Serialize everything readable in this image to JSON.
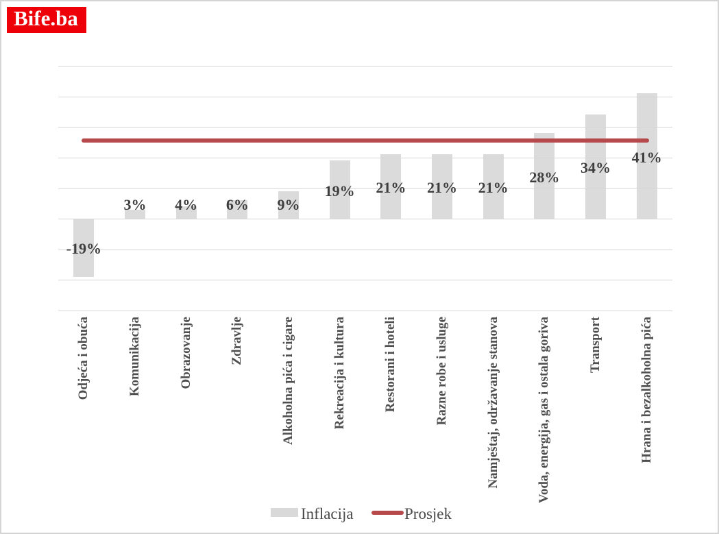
{
  "logo": {
    "text": "Bife.ba",
    "bg_color": "#ee0008",
    "text_color": "#ffffff"
  },
  "legend": {
    "items": [
      {
        "label": "Inflacija",
        "swatch": "bar",
        "color": "#d9d9d9"
      },
      {
        "label": "Prosjek",
        "swatch": "line",
        "color": "#b5494b"
      }
    ]
  },
  "chart_data": {
    "type": "bar",
    "title": "",
    "xlabel": "",
    "ylabel": "",
    "categories": [
      "Odjeća i obuća",
      "Komunikacija",
      "Obrazovanje",
      "Zdravlje",
      "Alkoholna pića i cigare",
      "Rekreacija i kultura",
      "Restorani i hoteli",
      "Razne robe i usluge",
      "Namještaj, održavanje stanova",
      "Voda, energija, gas i ostala goriva",
      "Transport",
      "Hrana i bezalkoholna pića"
    ],
    "series": [
      {
        "name": "Inflacija",
        "type": "bar",
        "color": "#dbdbdb",
        "values": [
          -19,
          3,
          4,
          6,
          9,
          19,
          21,
          21,
          21,
          28,
          34,
          41
        ],
        "data_labels": [
          "-19%",
          "3%",
          "4%",
          "6%",
          "9%",
          "19%",
          "21%",
          "21%",
          "21%",
          "28%",
          "34%",
          "41%"
        ]
      },
      {
        "name": "Prosjek",
        "type": "line",
        "color": "#b5494b",
        "value": 25.6
      }
    ],
    "ylim": [
      -30,
      50
    ],
    "gridline_step": 10,
    "grid": true,
    "value_axis_labels": false,
    "category_labels_rotated_degrees": 90,
    "legend_position": "bottom"
  }
}
